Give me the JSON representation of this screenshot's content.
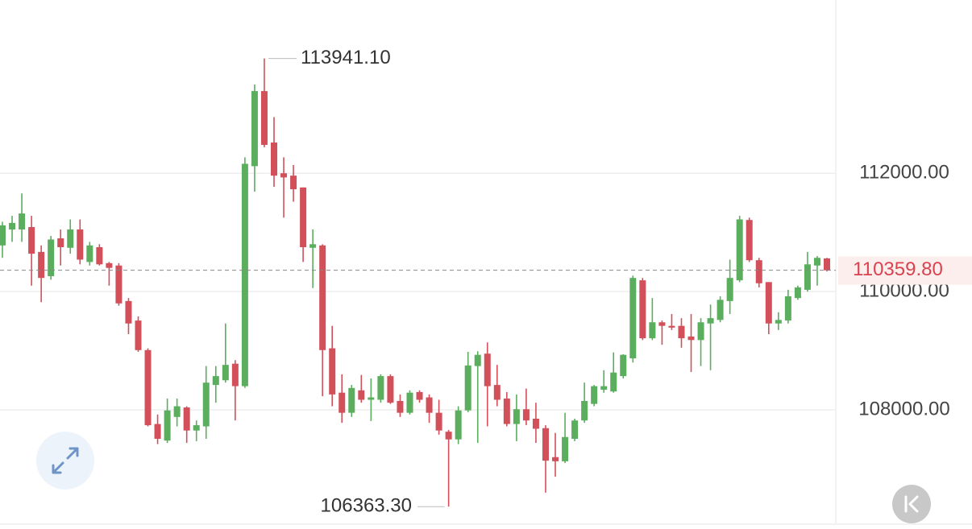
{
  "chart_data": {
    "type": "candlestick",
    "ylim": [
      106080,
      114930
    ],
    "yticks": [
      {
        "value": 112000,
        "label": "112000.00"
      },
      {
        "value": 110000,
        "label": "110000.00"
      },
      {
        "value": 108000,
        "label": "108000.00"
      }
    ],
    "grid": true,
    "up_color": "#5aae5e",
    "down_color": "#d2505a",
    "open": [
      110780,
      111050,
      111050,
      111090,
      110670,
      110260,
      110900,
      110740,
      111050,
      110500,
      110750,
      110480,
      110440,
      109840,
      109510,
      109010,
      107760,
      107480,
      107880,
      108040,
      107650,
      107720,
      108420,
      108500,
      108780,
      108400,
      112120,
      113390,
      112520,
      112000,
      111960,
      111760,
      110740,
      110780,
      109040,
      108290,
      107950,
      108330,
      108170,
      108170,
      108570,
      108150,
      107950,
      108300,
      108210,
      107950,
      107630,
      107500,
      107990,
      108740,
      108950,
      108420,
      108190,
      107760,
      108010,
      107850,
      107690,
      107200,
      107130,
      107510,
      107820,
      108100,
      108340,
      108310,
      108570,
      108870,
      110190,
      109210,
      109480,
      109420,
      109420,
      109240,
      109180,
      109460,
      109520,
      109840,
      110190,
      111210,
      110530,
      110160,
      109460,
      109510,
      109890,
      110030,
      110440,
      110560
    ],
    "high": [
      111180,
      111280,
      111660,
      111280,
      110780,
      110940,
      111050,
      111220,
      111220,
      110840,
      110800,
      110500,
      110480,
      109890,
      109580,
      109040,
      107920,
      108190,
      108190,
      108060,
      107820,
      108740,
      108740,
      109460,
      108840,
      112270,
      113500,
      113941.1,
      112950,
      112270,
      112140,
      111760,
      111050,
      110800,
      109420,
      108600,
      108420,
      108590,
      108530,
      108600,
      108600,
      108260,
      108330,
      108330,
      108260,
      108170,
      107660,
      108060,
      108980,
      108990,
      109140,
      108760,
      108300,
      108260,
      108360,
      108120,
      107740,
      107610,
      107950,
      107850,
      108460,
      108420,
      108670,
      108970,
      108940,
      110270,
      110230,
      109890,
      109510,
      109620,
      109550,
      109620,
      109550,
      109780,
      109920,
      110540,
      111280,
      111250,
      110570,
      110160,
      109650,
      110030,
      110100,
      110670,
      110600,
      110570
    ],
    "low": [
      110570,
      110840,
      110840,
      110100,
      109820,
      110200,
      110440,
      110640,
      110460,
      110440,
      110440,
      110100,
      109760,
      109280,
      108980,
      107720,
      107420,
      107440,
      107720,
      107440,
      107470,
      107510,
      108120,
      108460,
      107820,
      108370,
      111690,
      112440,
      111770,
      111250,
      111520,
      110500,
      110060,
      108230,
      108060,
      107780,
      107880,
      108120,
      107810,
      108120,
      108100,
      107880,
      107920,
      108120,
      107780,
      107580,
      106363.3,
      107420,
      107960,
      107440,
      107720,
      108060,
      107720,
      107470,
      107740,
      107440,
      106600,
      106870,
      107100,
      107470,
      107780,
      108060,
      108290,
      108290,
      108530,
      108800,
      109180,
      109180,
      109100,
      109350,
      109050,
      108640,
      108740,
      108670,
      109480,
      109620,
      110160,
      110500,
      110070,
      109280,
      109350,
      109460,
      109860,
      110000,
      110100,
      110340
    ],
    "close": [
      111120,
      111160,
      111320,
      110640,
      110230,
      110880,
      110750,
      111050,
      110540,
      110780,
      110460,
      110400,
      109800,
      109460,
      109010,
      107740,
      107510,
      107990,
      108060,
      107650,
      107740,
      108460,
      108570,
      108760,
      108400,
      112160,
      113390,
      112480,
      111960,
      111930,
      111730,
      110750,
      110800,
      109010,
      108260,
      107950,
      108370,
      108170,
      108210,
      108570,
      108120,
      107950,
      108290,
      108170,
      107950,
      107650,
      107500,
      107990,
      108750,
      108930,
      108400,
      108170,
      107760,
      108010,
      107820,
      107680,
      107140,
      107130,
      107540,
      107820,
      108150,
      108400,
      108400,
      108630,
      108930,
      110230,
      109210,
      109480,
      109420,
      109390,
      109210,
      109180,
      109480,
      109550,
      109860,
      110230,
      111220,
      110530,
      110140,
      109460,
      109520,
      109920,
      110070,
      110460,
      110570,
      110359.8
    ],
    "annotations": [
      {
        "value": 113941.1,
        "label": "113941.10"
      },
      {
        "value": 106363.3,
        "label": "106363.30"
      }
    ],
    "last_price": {
      "value": 110359.8,
      "label": "110359.80"
    }
  }
}
